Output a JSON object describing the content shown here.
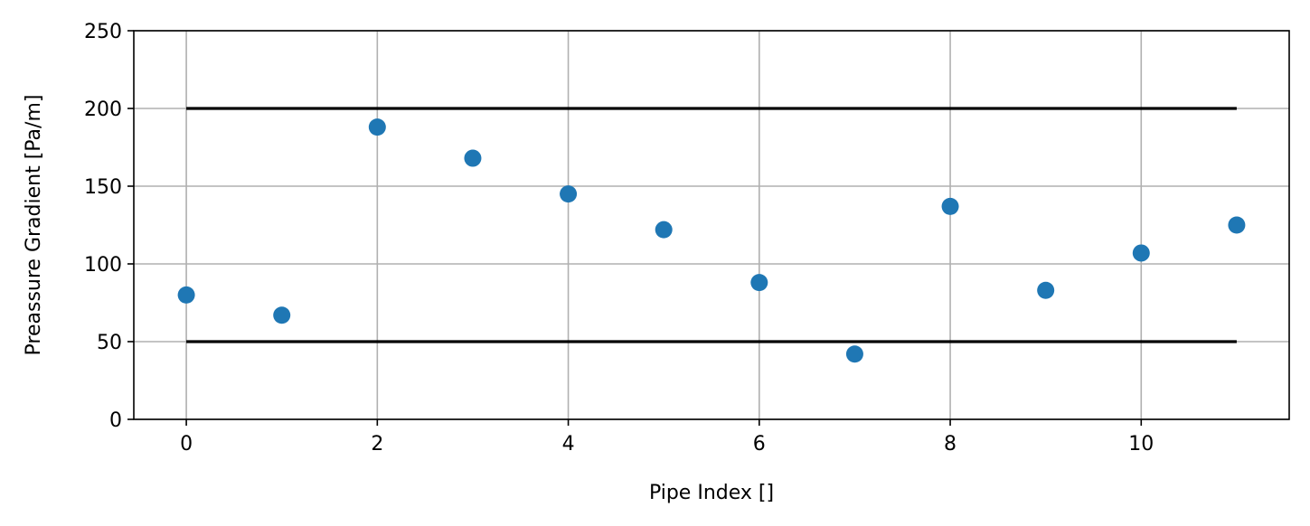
{
  "chart_data": {
    "type": "scatter",
    "title": "",
    "xlabel": "Pipe Index []",
    "ylabel": "Preassure Gradient [Pa/m]",
    "xlim": [
      -0.55,
      11.55
    ],
    "ylim": [
      0,
      250
    ],
    "xticks": [
      0,
      2,
      4,
      6,
      8,
      10
    ],
    "yticks": [
      0,
      50,
      100,
      150,
      200,
      250
    ],
    "grid": true,
    "legend": "none",
    "point_color": "#1f77b4",
    "line_color": "#000000",
    "series": [
      {
        "x": [
          0,
          1,
          2,
          3,
          4,
          5,
          6,
          7,
          8,
          9,
          10,
          11
        ],
        "y": [
          80,
          67,
          188,
          168,
          145,
          122,
          88,
          42,
          137,
          83,
          107,
          125
        ]
      }
    ],
    "reference_lines": [
      {
        "x": [
          0,
          11
        ],
        "y": 200
      },
      {
        "x": [
          0,
          11
        ],
        "y": 50
      }
    ]
  }
}
